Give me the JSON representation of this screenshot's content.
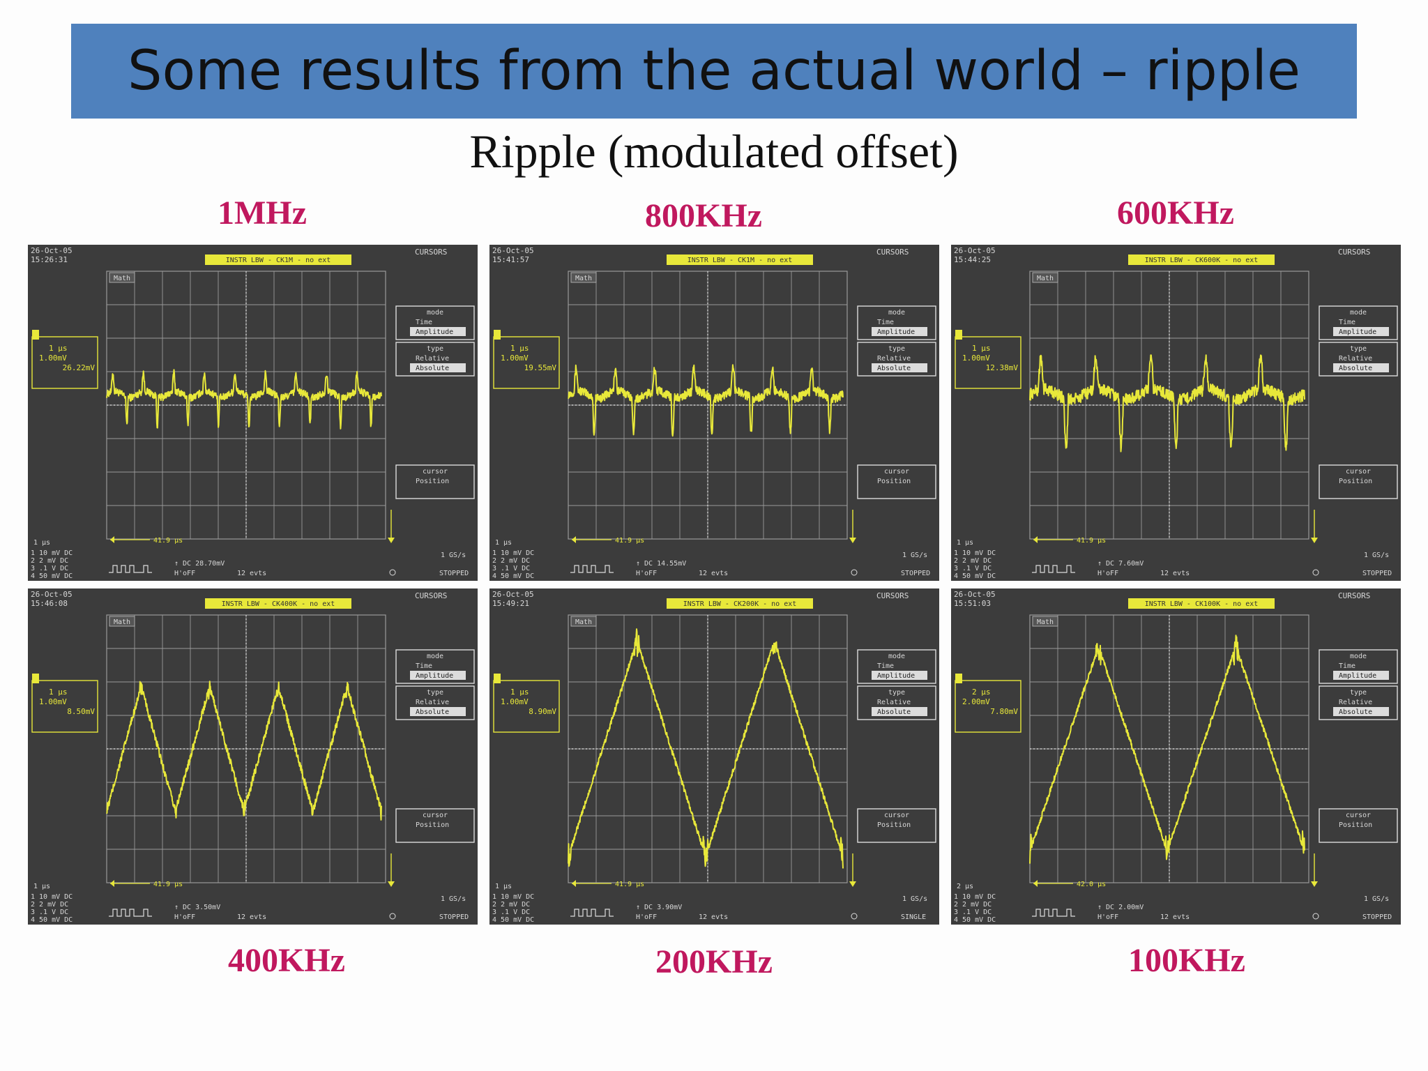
{
  "slide": {
    "title": "Some results from the actual world – ripple",
    "subtitle": "Ripple (modulated offset)"
  },
  "colors": {
    "title_bar": "#4f81bd",
    "label": "#c0185e",
    "screen": "#3c3c3c",
    "trace": "#e8e83a"
  },
  "scopes": [
    {
      "frequency": "1MHz",
      "date": "26-Oct-05",
      "time": "15:26:31",
      "header": "INSTR LBW - CK1M - no ext",
      "timebase": "1 µs",
      "scale": "1.00mV",
      "reading": "26.22mV",
      "delta": "41.9 µs",
      "dc": "DC 28.70mV",
      "status": "STOPPED",
      "waveform": "spike",
      "cycles": 9,
      "amplitude": 0.18
    },
    {
      "frequency": "800KHz",
      "date": "26-Oct-05",
      "time": "15:41:57",
      "header": "INSTR LBW - CK1M - no ext",
      "timebase": "1 µs",
      "scale": "1.00mV",
      "reading": "19.55mV",
      "delta": "41.9 µs",
      "dc": "DC 14.55mV",
      "status": "STOPPED",
      "waveform": "spike",
      "cycles": 7,
      "amplitude": 0.22
    },
    {
      "frequency": "600KHz",
      "date": "26-Oct-05",
      "time": "15:44:25",
      "header": "INSTR LBW - CK600K - no ext",
      "timebase": "1 µs",
      "scale": "1.00mV",
      "reading": "12.38mV",
      "delta": "41.9 µs",
      "dc": "DC 7.60mV",
      "status": "STOPPED",
      "waveform": "spike",
      "cycles": 5,
      "amplitude": 0.3
    },
    {
      "frequency": "400KHz",
      "date": "26-Oct-05",
      "time": "15:46:08",
      "header": "INSTR LBW - CK400K - no ext",
      "timebase": "1 µs",
      "scale": "1.00mV",
      "reading": "8.50mV",
      "delta": "41.9 µs",
      "dc": "DC 3.50mV",
      "status": "STOPPED",
      "waveform": "triangle-noisy",
      "cycles": 4,
      "amplitude": 0.55
    },
    {
      "frequency": "200KHz",
      "date": "26-Oct-05",
      "time": "15:49:21",
      "header": "INSTR LBW - CK200K - no ext",
      "timebase": "1 µs",
      "scale": "1.00mV",
      "reading": "8.90mV",
      "delta": "41.9 µs",
      "dc": "DC 3.90mV",
      "status": "SINGLE",
      "waveform": "triangle",
      "cycles": 2,
      "amplitude": 0.95
    },
    {
      "frequency": "100KHz",
      "date": "26-Oct-05",
      "time": "15:51:03",
      "header": "INSTR LBW - CK100K - no ext",
      "timebase": "2 µs",
      "scale": "2.00mV",
      "reading": "7.80mV",
      "delta": "42.0 µs",
      "dc": "DC 2.00mV",
      "status": "STOPPED",
      "waveform": "triangle",
      "cycles": 2,
      "amplitude": 0.9
    }
  ],
  "scope_common": {
    "cursors": "CURSORS",
    "mode_title": "mode",
    "mode_time": "Time",
    "mode_amplitude": "Amplitude",
    "type_title": "type",
    "type_relative": "Relative",
    "type_absolute": "Absolute",
    "cursor_label": "cursor",
    "position_label": "Position",
    "math_tag": "Math",
    "ch1": "1 10 mV DC",
    "ch2": "2 2 mV DC",
    "ch3": "3 .1 V DC",
    "ch4": "4 50 mV DC",
    "rate": "1 GS/s",
    "trigger_mode": "H'oFF",
    "events": "12 evts"
  }
}
